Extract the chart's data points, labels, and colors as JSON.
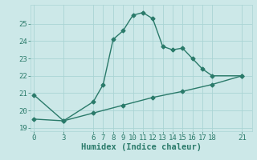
{
  "xlabel": "Humidex (Indice chaleur)",
  "background_color": "#cce8e8",
  "grid_color": "#aad4d4",
  "line_color": "#2a7a6a",
  "x_ticks": [
    0,
    3,
    6,
    7,
    8,
    9,
    10,
    11,
    12,
    13,
    14,
    15,
    16,
    17,
    18,
    21
  ],
  "line1_x": [
    0,
    3,
    6,
    7,
    8,
    9,
    10,
    11,
    12,
    13,
    14,
    15,
    16,
    17,
    18,
    21
  ],
  "line1_y": [
    20.9,
    19.4,
    20.5,
    21.5,
    24.1,
    24.6,
    25.5,
    25.65,
    25.3,
    23.7,
    23.5,
    23.6,
    23.0,
    22.4,
    22.0,
    22.0
  ],
  "line2_x": [
    0,
    3,
    6,
    9,
    12,
    15,
    18,
    21
  ],
  "line2_y": [
    19.5,
    19.4,
    19.85,
    20.3,
    20.75,
    21.1,
    21.5,
    22.0
  ],
  "ylim": [
    18.8,
    26.1
  ],
  "xlim": [
    -0.3,
    22.0
  ],
  "y_ticks": [
    19,
    20,
    21,
    22,
    23,
    24,
    25
  ],
  "marker": "D",
  "marker_size": 2.5,
  "line_width": 1.0,
  "font_size_ticks": 6.5,
  "font_size_xlabel": 7.5
}
